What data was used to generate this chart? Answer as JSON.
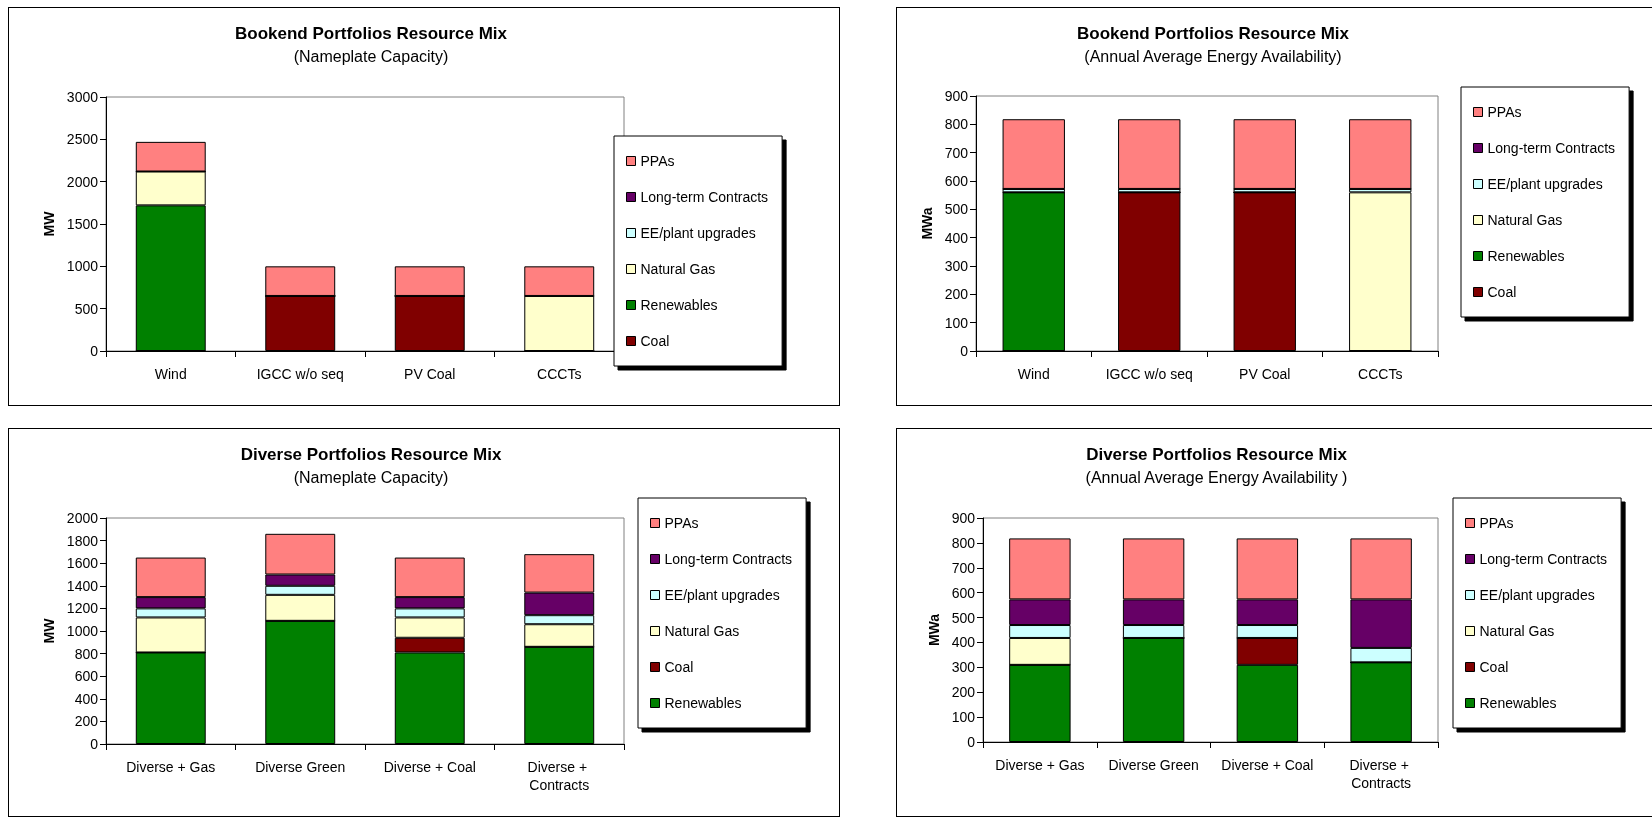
{
  "chart_data": [
    {
      "type": "bar",
      "title": "Bookend Portfolios Resource Mix",
      "subtitle": "(Nameplate Capacity)",
      "ylabel": "MW",
      "categories": [
        "Wind",
        "IGCC w/o seq",
        "PV Coal",
        "CCCTs"
      ],
      "stacked": true,
      "ylim": [
        0,
        3000
      ],
      "yticks": [
        0,
        500,
        1000,
        1500,
        2000,
        2500,
        3000
      ],
      "legend": "right",
      "series": [
        {
          "name": "Coal",
          "color": "#800000",
          "values": [
            0,
            650,
            650,
            0
          ]
        },
        {
          "name": "Renewables",
          "color": "#008000",
          "values": [
            1720,
            0,
            0,
            0
          ]
        },
        {
          "name": "Natural Gas",
          "color": "#ffffcc",
          "values": [
            400,
            0,
            0,
            650
          ]
        },
        {
          "name": "EE/plant upgrades",
          "color": "#ccffff",
          "values": [
            null,
            null,
            null,
            null
          ]
        },
        {
          "name": "Long-term Contracts",
          "color": "#660066",
          "values": [
            0,
            0,
            0,
            0
          ]
        },
        {
          "name": "PPAs",
          "color": "#ff8080",
          "values": [
            350,
            350,
            350,
            350
          ]
        }
      ]
    },
    {
      "type": "bar",
      "title": "Bookend Portfolios Resource Mix",
      "subtitle": "(Annual Average Energy Availability)",
      "ylabel": "MWa",
      "categories": [
        "Wind",
        "IGCC w/o seq",
        "PV Coal",
        "CCCTs"
      ],
      "stacked": true,
      "ylim": [
        0,
        900
      ],
      "yticks": [
        0,
        100,
        200,
        300,
        400,
        500,
        600,
        700,
        800,
        900
      ],
      "legend": "right",
      "series": [
        {
          "name": "Coal",
          "color": "#800000",
          "values": [
            0,
            560,
            560,
            0
          ]
        },
        {
          "name": "Renewables",
          "color": "#008000",
          "values": [
            560,
            0,
            0,
            0
          ]
        },
        {
          "name": "Natural Gas",
          "color": "#ffffcc",
          "values": [
            0,
            0,
            0,
            560
          ]
        },
        {
          "name": "EE/plant upgrades",
          "color": "#ccffff",
          "values": [
            12,
            12,
            12,
            12
          ]
        },
        {
          "name": "Long-term Contracts",
          "color": "#660066",
          "values": [
            0,
            0,
            0,
            0
          ]
        },
        {
          "name": "PPAs",
          "color": "#ff8080",
          "values": [
            246,
            246,
            246,
            246
          ]
        }
      ]
    },
    {
      "type": "bar",
      "title": "Diverse Portfolios Resource Mix",
      "subtitle": "(Nameplate Capacity)",
      "ylabel": "MW",
      "categories": [
        "Diverse + Gas",
        "Diverse Green",
        "Diverse + Coal",
        "Diverse + Contracts"
      ],
      "stacked": true,
      "ylim": [
        0,
        2000
      ],
      "yticks": [
        0,
        200,
        400,
        600,
        800,
        1000,
        1200,
        1400,
        1600,
        1800,
        2000
      ],
      "legend": "right",
      "series": [
        {
          "name": "Renewables",
          "color": "#008000",
          "values": [
            810,
            1090,
            810,
            860
          ]
        },
        {
          "name": "Coal",
          "color": "#800000",
          "values": [
            0,
            0,
            130,
            0
          ]
        },
        {
          "name": "Natural Gas",
          "color": "#ffffcc",
          "values": [
            310,
            230,
            180,
            200
          ]
        },
        {
          "name": "EE/plant upgrades",
          "color": "#ccffff",
          "values": [
            80,
            80,
            80,
            80
          ]
        },
        {
          "name": "Long-term Contracts",
          "color": "#660066",
          "values": [
            100,
            100,
            100,
            200
          ]
        },
        {
          "name": "PPAs",
          "color": "#ff8080",
          "values": [
            350,
            360,
            350,
            340
          ]
        }
      ]
    },
    {
      "type": "bar",
      "title": "Diverse Portfolios Resource Mix",
      "subtitle": "(Annual Average Energy Availability )",
      "ylabel": "MWa",
      "categories": [
        "Diverse + Gas",
        "Diverse Green",
        "Diverse + Coal",
        "Diverse + Contracts"
      ],
      "stacked": true,
      "ylim": [
        0,
        900
      ],
      "yticks": [
        0,
        100,
        200,
        300,
        400,
        500,
        600,
        700,
        800,
        900
      ],
      "legend": "right",
      "series": [
        {
          "name": "Renewables",
          "color": "#008000",
          "values": [
            310,
            418,
            310,
            320
          ]
        },
        {
          "name": "Coal",
          "color": "#800000",
          "values": [
            0,
            0,
            108,
            0
          ]
        },
        {
          "name": "Natural Gas",
          "color": "#ffffcc",
          "values": [
            108,
            0,
            0,
            0
          ]
        },
        {
          "name": "EE/plant upgrades",
          "color": "#ccffff",
          "values": [
            52,
            52,
            52,
            58
          ]
        },
        {
          "name": "Long-term Contracts",
          "color": "#660066",
          "values": [
            103,
            103,
            103,
            195
          ]
        },
        {
          "name": "PPAs",
          "color": "#ff8080",
          "values": [
            245,
            245,
            245,
            245
          ]
        }
      ]
    }
  ]
}
